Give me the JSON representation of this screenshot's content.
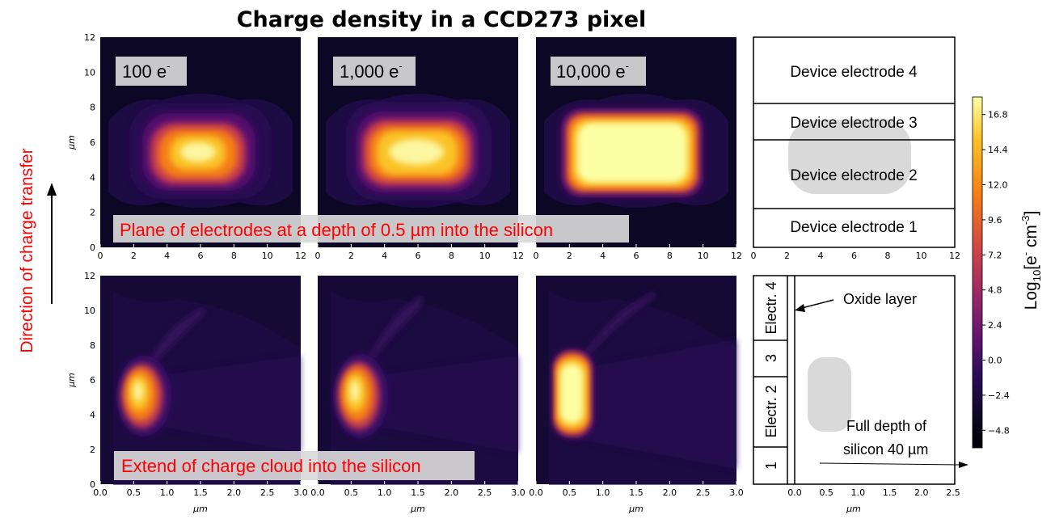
{
  "title": "Charge density in a CCD273 pixel",
  "side_label": "Direction of charge transfer",
  "colorbar": {
    "label": "Log",
    "label_sub": "10",
    "label_rest": "[e",
    "label_sup": "-",
    "label_end": " cm",
    "label_sup2": "-3",
    "label_close": "]",
    "ticks": [
      "16.8",
      "14.4",
      "12.0",
      "9.6",
      "7.2",
      "4.8",
      "2.4",
      "0.0",
      "−2.4",
      "−4.8"
    ],
    "tick_values": [
      16.8,
      14.4,
      12.0,
      9.6,
      7.2,
      4.8,
      2.4,
      0.0,
      -2.4,
      -4.8
    ],
    "range": [
      -6,
      18
    ]
  },
  "panel_labels": [
    "100 e",
    "1,000 e",
    "10,000 e"
  ],
  "panel_label_sup": "-",
  "top_caption": "Plane of electrodes at a depth of 0.5 µm into the silicon",
  "bottom_caption": "Extend of charge cloud into the silicon",
  "electrodes_top": [
    "Device electrode 4",
    "Device electrode 3",
    "Device electrode 2",
    "Device electrode 1"
  ],
  "electrodes_bottom": [
    "Electr. 4",
    "3",
    "Electr. 2",
    "1"
  ],
  "oxide_label": "Oxide layer",
  "depth_label_1": "Full depth of",
  "depth_label_2": "silicon 40 µm",
  "axis_unit": "µm",
  "chart_data": {
    "type": "heatmap",
    "title": "Charge density in a CCD273 pixel",
    "colorbar_label": "Log10[e- cm-3]",
    "colorbar_range": [
      -6,
      18
    ],
    "top_row": {
      "xlabel": "",
      "ylabel": "µm",
      "xlim": [
        0,
        12
      ],
      "ylim": [
        0,
        12
      ],
      "x_ticks": [
        "0",
        "2",
        "4",
        "6",
        "8",
        "10",
        "12"
      ],
      "y_ticks": [
        "0",
        "2",
        "4",
        "6",
        "8",
        "10",
        "12"
      ],
      "panels": [
        {
          "name": "100 e-",
          "center": [
            5.8,
            5.3
          ],
          "peak_log10": 14.5
        },
        {
          "name": "1,000 e-",
          "center": [
            5.8,
            5.3
          ],
          "peak_log10": 15.5
        },
        {
          "name": "10,000 e-",
          "center": [
            5.8,
            5.2
          ],
          "peak_log10": 16.8
        }
      ]
    },
    "bottom_row": {
      "xlabel": "µm",
      "ylabel": "µm",
      "xlim": [
        0,
        3
      ],
      "ylim": [
        0,
        12
      ],
      "x_ticks": [
        "0.0",
        "0.5",
        "1.0",
        "1.5",
        "2.0",
        "2.5",
        "3.0"
      ],
      "y_ticks": [
        "0",
        "2",
        "4",
        "6",
        "8",
        "10",
        "12"
      ],
      "panels": [
        {
          "name": "100 e-",
          "center": [
            0.45,
            5.3
          ],
          "peak_log10": 14.5
        },
        {
          "name": "1,000 e-",
          "center": [
            0.45,
            5.3
          ],
          "peak_log10": 15.5
        },
        {
          "name": "10,000 e-",
          "center": [
            0.45,
            5.2
          ],
          "peak_log10": 16.8
        }
      ]
    },
    "schematic_x_ticks": [
      "0.0",
      "0.5",
      "1.0",
      "1.5",
      "2.0",
      "2.5"
    ]
  }
}
